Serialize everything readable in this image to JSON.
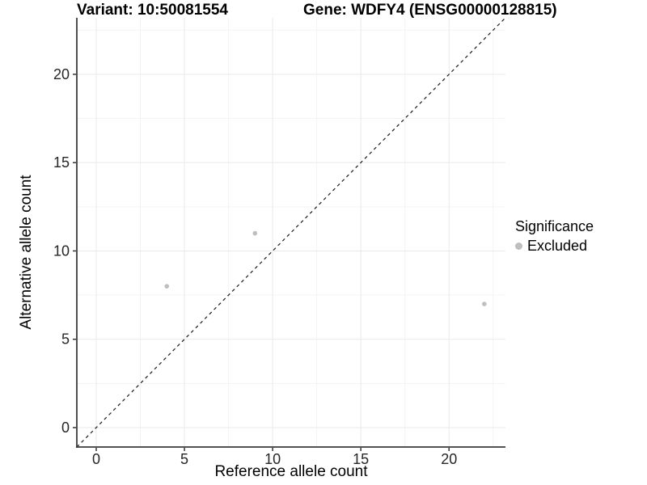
{
  "chart_data": {
    "type": "scatter",
    "title_left": "Variant: 10:50081554",
    "title_right": "Gene: WDFY4 (ENSG00000128815)",
    "xlabel": "Reference allele count",
    "ylabel": "Alternative allele count",
    "xlim": [
      -1.1,
      23.2
    ],
    "ylim": [
      -1.1,
      23.2
    ],
    "x_ticks": [
      0,
      5,
      10,
      15,
      20
    ],
    "y_ticks": [
      0,
      5,
      10,
      15,
      20
    ],
    "x_minor_ticks": [
      2.5,
      7.5,
      12.5,
      17.5,
      22.5
    ],
    "y_minor_ticks": [
      2.5,
      7.5,
      12.5,
      17.5,
      22.5
    ],
    "grid": true,
    "identity_line": {
      "slope": 1,
      "intercept": 0,
      "style": "dashed"
    },
    "series": [
      {
        "name": "Excluded",
        "color": "#bebebe",
        "points": [
          {
            "x": 4,
            "y": 8
          },
          {
            "x": 9,
            "y": 11
          },
          {
            "x": 22,
            "y": 7
          }
        ]
      }
    ],
    "legend": {
      "title": "Significance",
      "position": "right",
      "items": [
        {
          "label": "Excluded",
          "color": "#bebebe",
          "marker": "circle"
        }
      ]
    },
    "colors": {
      "background": "#ffffff",
      "grid_major": "#e9e9e9",
      "grid_minor": "#f3f3f3",
      "axis_line": "#3c3c3c",
      "tick_mark": "#333333",
      "tick_label": "#262626",
      "identity_line": "#1a1a1a"
    }
  }
}
